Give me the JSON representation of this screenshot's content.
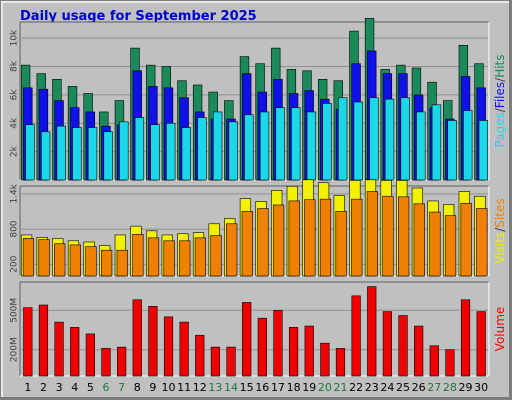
{
  "chart_data": {
    "type": "bar",
    "title": "Daily usage for September 2025",
    "days": [
      "1",
      "2",
      "3",
      "4",
      "5",
      "6",
      "7",
      "8",
      "9",
      "10",
      "11",
      "12",
      "13",
      "14",
      "15",
      "16",
      "17",
      "18",
      "19",
      "20",
      "21",
      "22",
      "23",
      "24",
      "25",
      "26",
      "27",
      "28",
      "29",
      "30"
    ],
    "weekend_days": [
      "6",
      "7",
      "13",
      "14",
      "20",
      "21",
      "27",
      "28"
    ],
    "panels": [
      {
        "name": "hits-pages-files",
        "ylim": [
          0,
          11000
        ],
        "yticks": [
          {
            "value": 2000,
            "label": "2k"
          },
          {
            "value": 4000,
            "label": "4k"
          },
          {
            "value": 6000,
            "label": "6k"
          },
          {
            "value": 8000,
            "label": "8k"
          },
          {
            "value": 10000,
            "label": "10k"
          }
        ],
        "axis_title": [
          "Pages",
          "Files",
          "Hits"
        ],
        "series": [
          {
            "name": "Hits",
            "color": "#1a8a5a",
            "values": [
              8100,
              7500,
              7100,
              6600,
              6100,
              4800,
              5600,
              9300,
              8100,
              8000,
              7000,
              6700,
              6200,
              5600,
              8700,
              8200,
              9300,
              7800,
              7700,
              7100,
              7000,
              10500,
              11400,
              7800,
              8100,
              7900,
              6900,
              5600,
              9500,
              8200
            ]
          },
          {
            "name": "Files",
            "color": "#1010e8",
            "values": [
              6500,
              6400,
              5600,
              5100,
              4800,
              3800,
              3900,
              7700,
              6600,
              6500,
              5800,
              4800,
              4300,
              4300,
              7500,
              6200,
              7100,
              6100,
              6300,
              5700,
              5000,
              8200,
              9100,
              7500,
              7500,
              6000,
              5100,
              4300,
              7300,
              6500
            ]
          },
          {
            "name": "Pages",
            "color": "#1ad8e8",
            "values": [
              3900,
              3400,
              3800,
              3700,
              3700,
              3400,
              4100,
              4400,
              3900,
              4000,
              3700,
              4400,
              4800,
              4100,
              4600,
              4800,
              5100,
              5100,
              4800,
              5400,
              5800,
              5500,
              5800,
              5700,
              5800,
              4800,
              5300,
              4200,
              4900,
              4200
            ]
          }
        ]
      },
      {
        "name": "visits-sites",
        "ylim": [
          0,
          1500
        ],
        "yticks": [
          {
            "value": 200,
            "label": "200"
          },
          {
            "value": 800,
            "label": "800"
          },
          {
            "value": 1400,
            "label": "1.4k"
          }
        ],
        "axis_title": [
          "Visits",
          "Sites"
        ],
        "series": [
          {
            "name": "Visits",
            "color": "#f2f200",
            "values": [
              700,
              660,
              640,
              600,
              580,
              520,
              700,
              850,
              770,
              700,
              720,
              740,
              890,
              980,
              1320,
              1270,
              1460,
              1530,
              1640,
              1590,
              1370,
              1630,
              1640,
              1630,
              1630,
              1500,
              1280,
              1220,
              1440,
              1360
            ]
          },
          {
            "name": "Sites",
            "color": "#f08000",
            "values": [
              640,
              620,
              550,
              530,
              500,
              440,
              440,
              710,
              650,
              600,
              600,
              650,
              690,
              890,
              1100,
              1150,
              1210,
              1280,
              1300,
              1310,
              1100,
              1310,
              1440,
              1360,
              1350,
              1230,
              1090,
              1030,
              1240,
              1150
            ]
          }
        ]
      },
      {
        "name": "volume",
        "ylim": [
          0,
          700
        ],
        "yticks": [
          {
            "value": 200,
            "label": "200M"
          },
          {
            "value": 500,
            "label": "500M"
          }
        ],
        "axis_title": [
          "Volume"
        ],
        "series": [
          {
            "name": "Volume",
            "color": "#f00000",
            "values": [
              520,
              540,
              410,
              370,
              320,
              210,
              220,
              580,
              530,
              450,
              410,
              310,
              220,
              220,
              560,
              440,
              500,
              370,
              380,
              250,
              210,
              610,
              680,
              490,
              460,
              380,
              230,
              200,
              580,
              490
            ]
          }
        ]
      }
    ]
  }
}
